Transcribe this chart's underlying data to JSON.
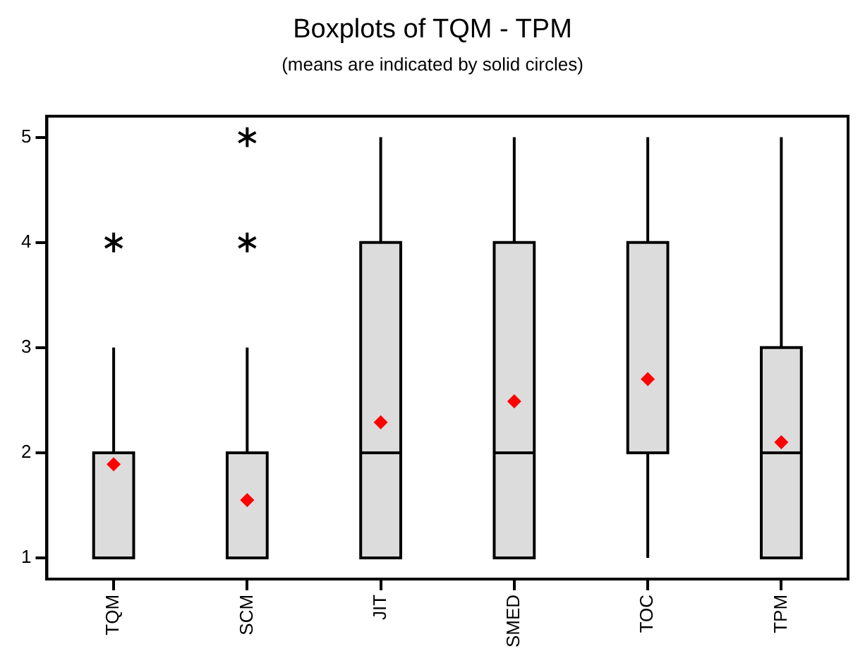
{
  "chart_data": {
    "type": "box",
    "title": "Boxplots of TQM - TPM",
    "subtitle": "(means are indicated by solid circles)",
    "categories": [
      "TQM",
      "SCM",
      "JIT",
      "SMED",
      "TOC",
      "TPM"
    ],
    "color": "#dcdcdc",
    "grid": false,
    "legend": false,
    "ylim": [
      0.8,
      5.2
    ],
    "yticks": [
      1,
      2,
      3,
      4,
      5
    ],
    "boxes": [
      {
        "low": 1,
        "q1": 1,
        "median": 2,
        "q3": 2,
        "high": 3,
        "mean": 1.89,
        "outliers": [
          4
        ]
      },
      {
        "low": 1,
        "q1": 1,
        "median": 2,
        "q3": 2,
        "high": 3,
        "mean": 1.55,
        "outliers": [
          4,
          5
        ]
      },
      {
        "low": 1,
        "q1": 1,
        "median": 2,
        "q3": 4,
        "high": 5,
        "mean": 2.29
      },
      {
        "low": 1,
        "q1": 1,
        "median": 2,
        "q3": 4,
        "high": 5,
        "mean": 2.49
      },
      {
        "low": 1,
        "q1": 2,
        "median": 2,
        "q3": 4,
        "high": 5,
        "mean": 2.7
      },
      {
        "low": 1,
        "q1": 1,
        "median": 2,
        "q3": 3,
        "high": 5,
        "mean": 2.1
      }
    ]
  }
}
